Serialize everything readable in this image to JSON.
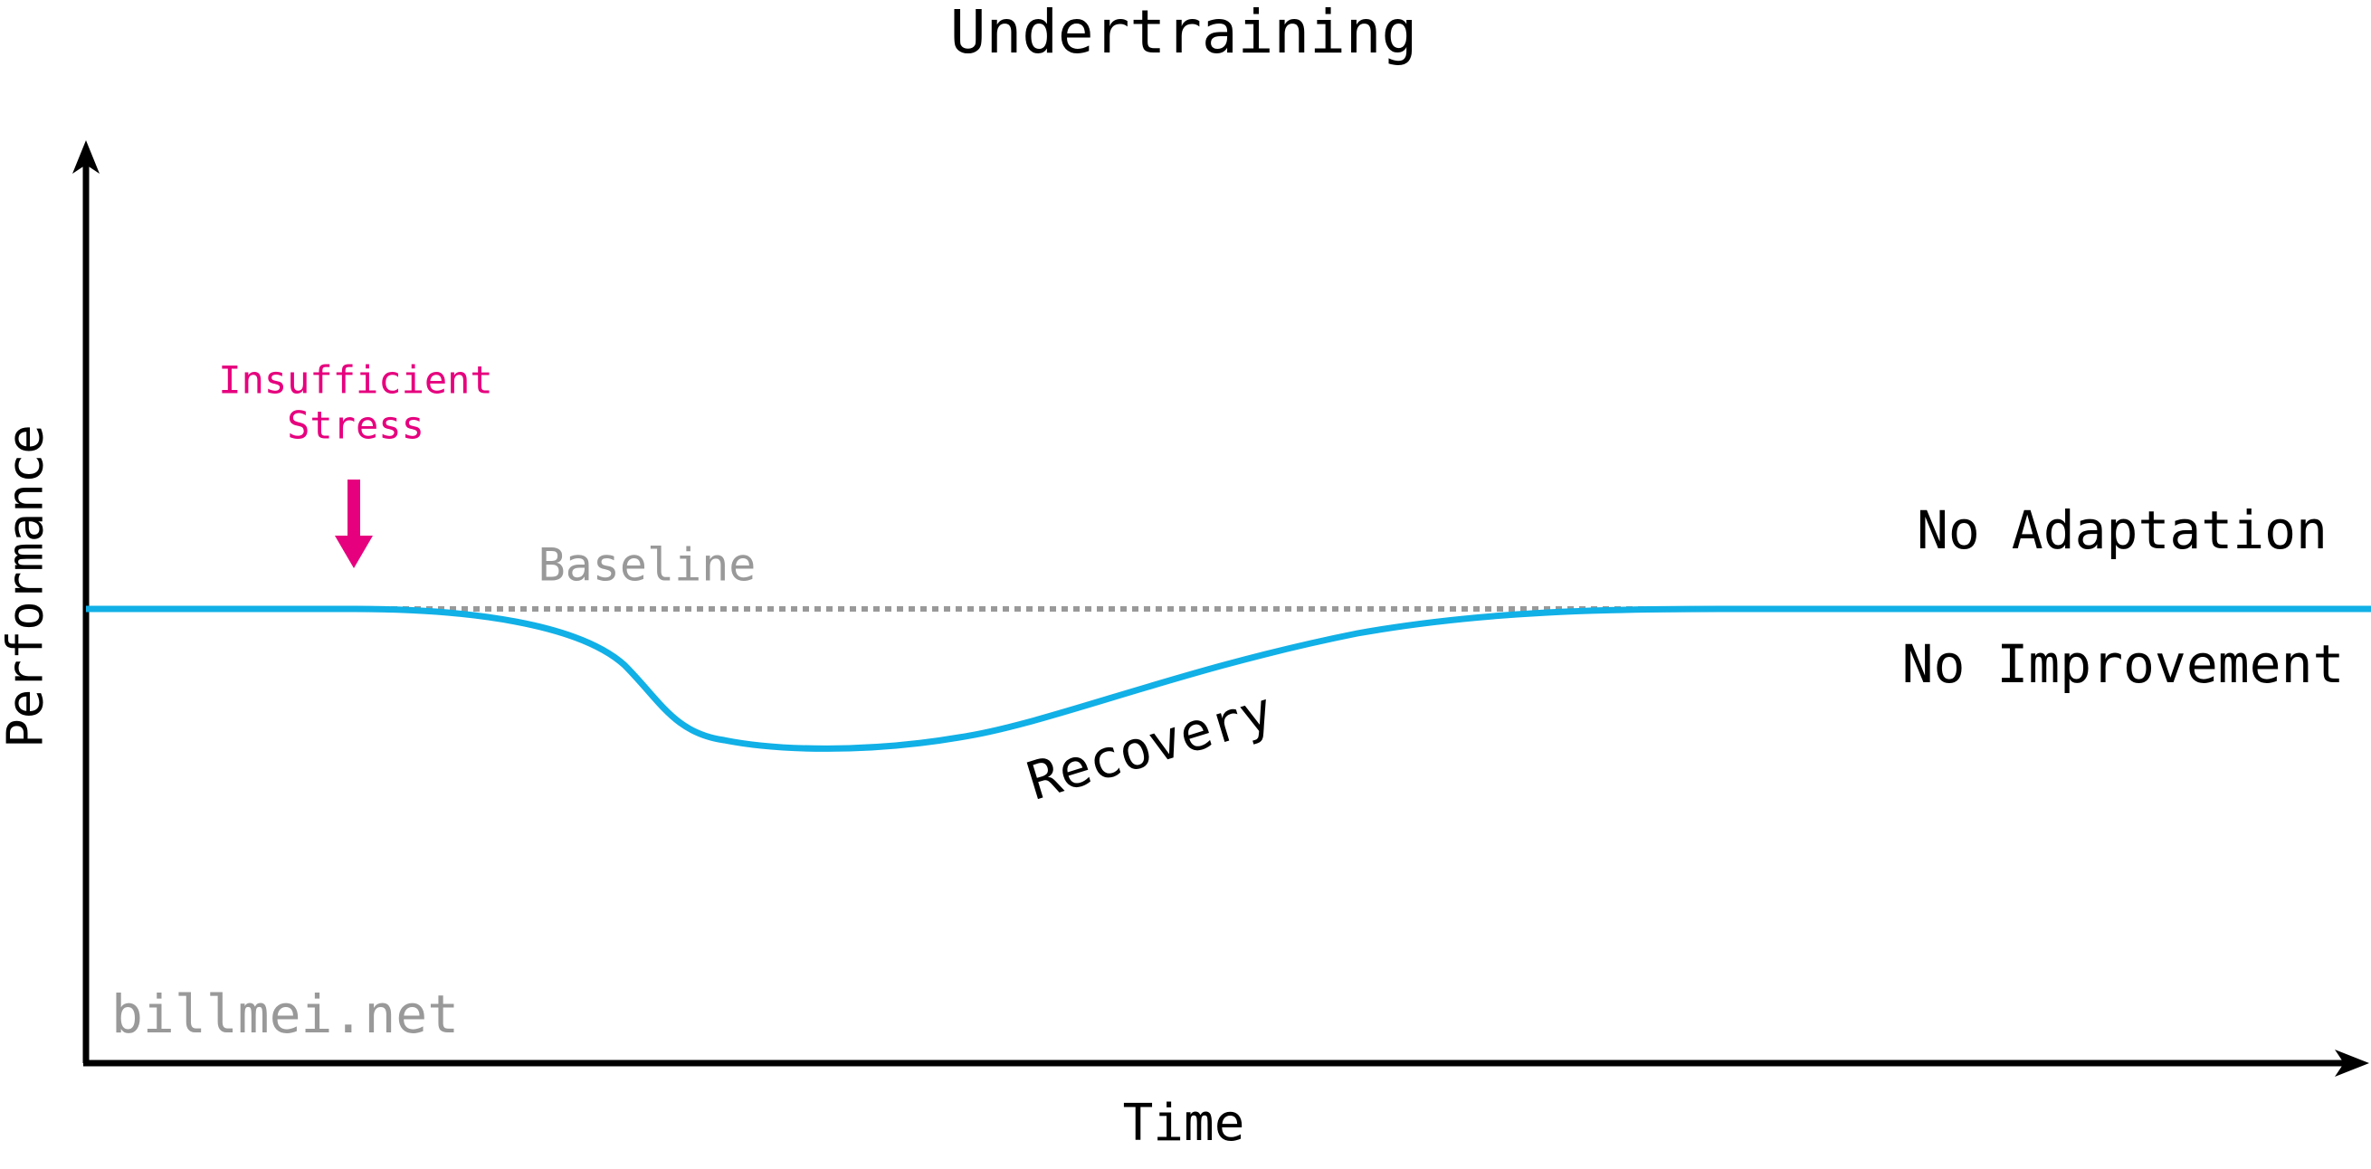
{
  "header": {
    "title": "Undertraining"
  },
  "axes": {
    "y_label": "Performance",
    "x_label": "Time"
  },
  "annotations": {
    "stress": [
      "Insufficient",
      "Stress"
    ],
    "baseline": "Baseline",
    "recovery": "Recovery",
    "outcome": [
      "No Adaptation",
      "No Improvement"
    ]
  },
  "watermark": "billmei.net"
}
